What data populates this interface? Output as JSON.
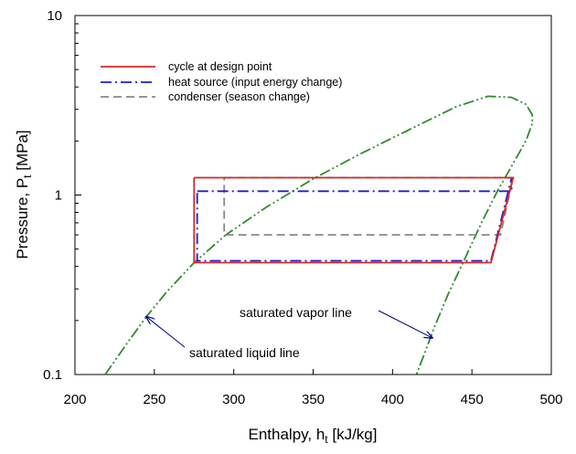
{
  "chart_data": {
    "type": "line",
    "title": "",
    "xlabel": "Enthalpy, h",
    "xlabel_sub": "t",
    "xlabel_unit": " [kJ/kg]",
    "ylabel": "Pressure, P",
    "ylabel_sub": "t",
    "ylabel_unit": " [MPa]",
    "xlim": [
      200,
      500
    ],
    "ylim": [
      0.1,
      10
    ],
    "y_scale": "log",
    "grid": false,
    "legend_placement": "top-left",
    "x_ticks": [
      200,
      250,
      300,
      350,
      400,
      450,
      500
    ],
    "x_tick_labels": [
      "200",
      "250",
      "300",
      "350",
      "400",
      "450",
      "500"
    ],
    "y_ticks": [
      0.1,
      1,
      10
    ],
    "y_tick_labels": [
      "0.1",
      "1",
      "10"
    ],
    "series": [
      {
        "name": "cycle at design point",
        "color": "#d62728",
        "dash": "solid",
        "x": [
          275,
          476,
          462,
          275,
          275
        ],
        "y": [
          1.25,
          1.25,
          0.42,
          0.42,
          1.25
        ]
      },
      {
        "name": "heat source (input energy change)",
        "color": "#1f1fcc",
        "dash": "dashdot",
        "x": [
          277,
          475,
          475,
          462,
          277,
          277
        ],
        "y": [
          1.05,
          1.05,
          1.25,
          0.43,
          0.43,
          1.05
        ]
      },
      {
        "name": "condenser (season change)",
        "color": "#888888",
        "dash": "dashed",
        "x": [
          294,
          476,
          468,
          294,
          294
        ],
        "y": [
          1.25,
          1.25,
          0.6,
          0.6,
          1.25
        ]
      },
      {
        "name": "",
        "color": "#2e8b2e",
        "dash": "dashdotdot",
        "x": [
          219,
          233,
          245,
          258,
          275,
          295,
          320,
          350,
          380,
          410,
          440,
          460,
          475,
          484,
          488,
          488,
          484,
          476,
          466,
          456,
          446,
          435,
          426,
          420,
          415
        ],
        "y": [
          0.1,
          0.15,
          0.21,
          0.29,
          0.42,
          0.6,
          0.85,
          1.23,
          1.7,
          2.3,
          3.1,
          3.55,
          3.5,
          3.2,
          2.8,
          2.5,
          2.0,
          1.5,
          1.05,
          0.7,
          0.45,
          0.28,
          0.18,
          0.13,
          0.1
        ]
      }
    ],
    "annotations": [
      {
        "text": "saturated liquid line",
        "arrow_to": [
          245,
          0.21
        ]
      },
      {
        "text": "saturated vapor line",
        "arrow_to": [
          425,
          0.16
        ]
      }
    ]
  }
}
